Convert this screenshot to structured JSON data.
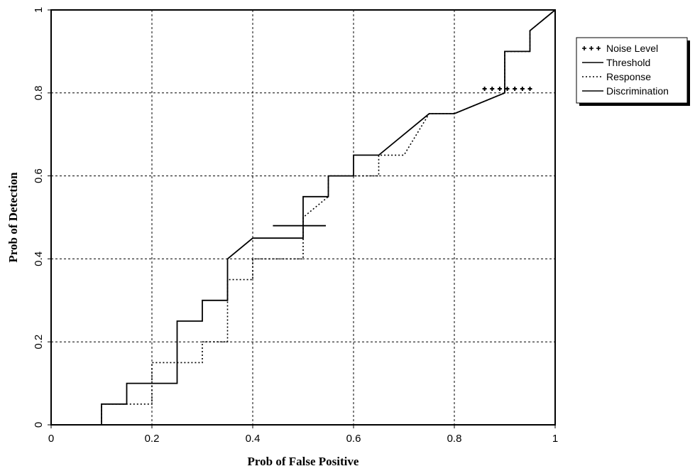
{
  "chart_data": {
    "type": "line",
    "title": "",
    "xlabel": "Prob of False Positive",
    "ylabel": "Prob of Detection",
    "xlim": [
      0,
      1
    ],
    "ylim": [
      0,
      1
    ],
    "x_ticks": [
      "0",
      "0.2",
      "0.4",
      "0.6",
      "0.8",
      "1"
    ],
    "y_ticks": [
      "0",
      "0.2",
      "0.4",
      "0.6",
      "0.8",
      "1"
    ],
    "grid": true,
    "legend_position": "right",
    "series": [
      {
        "name": "Noise Level",
        "style": "plus-markers",
        "color": "#000000",
        "points": [
          [
            0.86,
            0.81
          ],
          [
            0.875,
            0.81
          ],
          [
            0.89,
            0.81
          ],
          [
            0.905,
            0.81
          ],
          [
            0.92,
            0.81
          ],
          [
            0.935,
            0.81
          ],
          [
            0.95,
            0.81
          ]
        ]
      },
      {
        "name": "Threshold",
        "style": "solid",
        "color": "#000000",
        "points": [
          [
            0,
            0
          ],
          [
            0.1,
            0
          ],
          [
            0.1,
            0.05
          ],
          [
            0.15,
            0.05
          ],
          [
            0.15,
            0.1
          ],
          [
            0.25,
            0.1
          ],
          [
            0.25,
            0.25
          ],
          [
            0.3,
            0.25
          ],
          [
            0.3,
            0.3
          ],
          [
            0.35,
            0.3
          ],
          [
            0.35,
            0.4
          ],
          [
            0.4,
            0.45
          ],
          [
            0.5,
            0.45
          ],
          [
            0.5,
            0.55
          ],
          [
            0.55,
            0.55
          ],
          [
            0.55,
            0.6
          ],
          [
            0.6,
            0.6
          ],
          [
            0.6,
            0.65
          ],
          [
            0.65,
            0.65
          ],
          [
            0.75,
            0.75
          ],
          [
            0.8,
            0.75
          ],
          [
            0.9,
            0.8
          ],
          [
            0.9,
            0.9
          ],
          [
            0.95,
            0.9
          ],
          [
            0.95,
            0.95
          ],
          [
            1,
            1
          ]
        ]
      },
      {
        "name": "Response",
        "style": "dotted",
        "color": "#000000",
        "points": [
          [
            0,
            0
          ],
          [
            0.1,
            0
          ],
          [
            0.1,
            0.05
          ],
          [
            0.2,
            0.05
          ],
          [
            0.2,
            0.15
          ],
          [
            0.3,
            0.15
          ],
          [
            0.3,
            0.2
          ],
          [
            0.35,
            0.2
          ],
          [
            0.35,
            0.35
          ],
          [
            0.4,
            0.35
          ],
          [
            0.4,
            0.4
          ],
          [
            0.5,
            0.4
          ],
          [
            0.5,
            0.5
          ],
          [
            0.55,
            0.55
          ],
          [
            0.55,
            0.6
          ],
          [
            0.6,
            0.6
          ],
          [
            0.65,
            0.6
          ],
          [
            0.65,
            0.65
          ],
          [
            0.7,
            0.65
          ],
          [
            0.75,
            0.75
          ],
          [
            0.8,
            0.75
          ],
          [
            0.9,
            0.8
          ],
          [
            0.9,
            0.9
          ],
          [
            0.95,
            0.9
          ],
          [
            0.95,
            0.95
          ],
          [
            1,
            1
          ]
        ]
      },
      {
        "name": "Discrimination",
        "style": "solid",
        "color": "#000000",
        "points": [
          [
            0.44,
            0.48
          ],
          [
            0.545,
            0.48
          ]
        ]
      }
    ]
  }
}
